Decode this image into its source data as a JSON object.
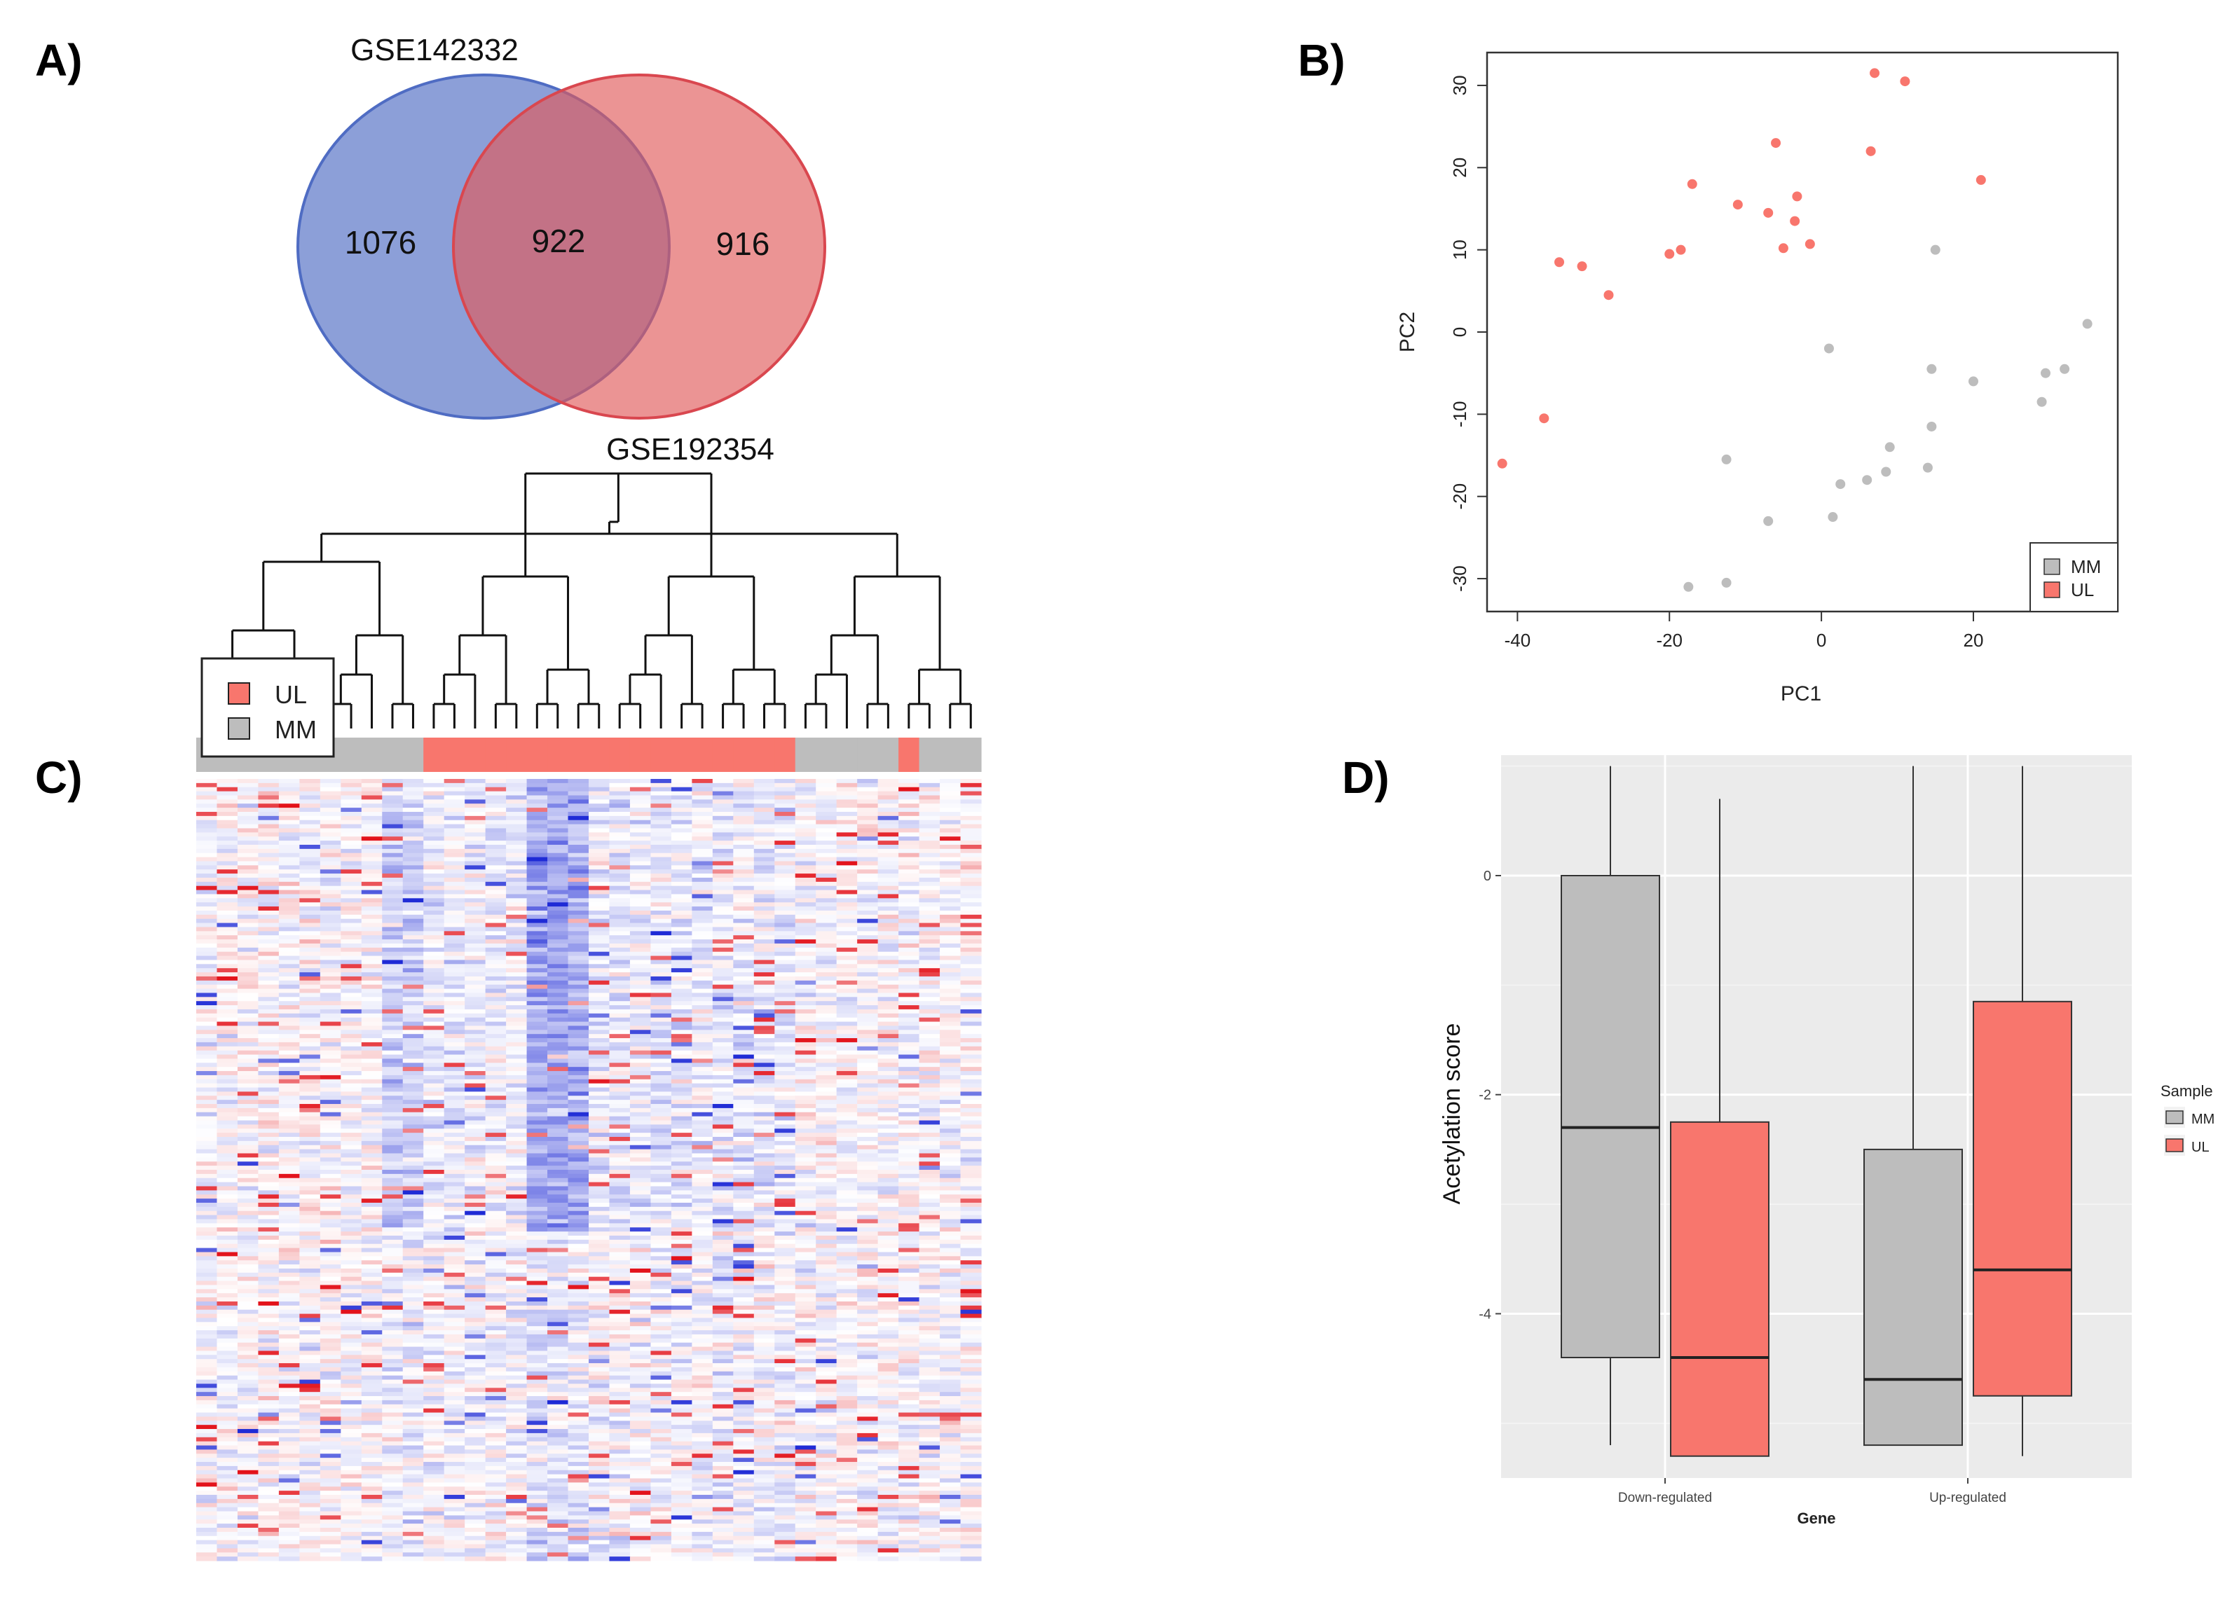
{
  "figure": {
    "panel_labels": [
      "A)",
      "B)",
      "C)",
      "D)"
    ]
  },
  "colors": {
    "set_blue": "#4f6cc3",
    "set_red": "#e15a5a",
    "ul": "#f8766d",
    "mm": "#bdbdbd",
    "heat_low": "#1f2bd6",
    "heat_mid": "#ffffff",
    "heat_high": "#e3131b",
    "panel_bg": "#ebebeb"
  },
  "chart_data": [
    {
      "panel": "A)",
      "type": "venn",
      "sets": [
        {
          "name": "GSE142332",
          "only": "1076"
        },
        {
          "name": "GSE192354",
          "only": "916"
        }
      ],
      "intersection": "922"
    },
    {
      "panel": "B)",
      "type": "scatter",
      "xlabel": "PC1",
      "ylabel": "PC2",
      "xlim": [
        -44,
        39
      ],
      "ylim": [
        -34,
        34
      ],
      "xticks": [
        "-40",
        "-20",
        "0",
        "20"
      ],
      "xtick_values": [
        -40,
        -20,
        0,
        20
      ],
      "yticks": [
        "-30",
        "-20",
        "-10",
        "0",
        "10",
        "20",
        "30"
      ],
      "ytick_values": [
        -30,
        -20,
        -10,
        0,
        10,
        20,
        30
      ],
      "legend": [
        {
          "label": "MM",
          "color": "#bdbdbd"
        },
        {
          "label": "UL",
          "color": "#f8766d"
        }
      ],
      "series": [
        {
          "name": "UL",
          "color": "#f8766d",
          "points": [
            [
              -42,
              -16
            ],
            [
              -36.5,
              -10.5
            ],
            [
              -34.5,
              8.5
            ],
            [
              -31.5,
              8
            ],
            [
              -28,
              4.5
            ],
            [
              -20,
              9.5
            ],
            [
              -18.5,
              10
            ],
            [
              -17,
              18
            ],
            [
              -11,
              15.5
            ],
            [
              -7,
              14.5
            ],
            [
              -6,
              23
            ],
            [
              -5,
              10.2
            ],
            [
              -3.5,
              13.5
            ],
            [
              -3.2,
              16.5
            ],
            [
              -1.5,
              10.7
            ],
            [
              6.5,
              22
            ],
            [
              7,
              31.5
            ],
            [
              11,
              30.5
            ],
            [
              21,
              18.5
            ]
          ]
        },
        {
          "name": "MM",
          "color": "#bdbdbd",
          "points": [
            [
              -17.5,
              -31
            ],
            [
              -12.5,
              -30.5
            ],
            [
              -12.5,
              -15.5
            ],
            [
              -7,
              -23
            ],
            [
              1,
              -2
            ],
            [
              1.5,
              -22.5
            ],
            [
              2.5,
              -18.5
            ],
            [
              6,
              -18
            ],
            [
              8.5,
              -17
            ],
            [
              9,
              -14
            ],
            [
              14,
              -16.5
            ],
            [
              14.5,
              -4.5
            ],
            [
              14.5,
              -11.5
            ],
            [
              15,
              10
            ],
            [
              20,
              -6
            ],
            [
              29,
              -8.5
            ],
            [
              29.5,
              -5
            ],
            [
              32,
              -4.5
            ],
            [
              35,
              1
            ]
          ]
        }
      ]
    },
    {
      "panel": "C)",
      "type": "heatmap",
      "legend": [
        {
          "label": "UL",
          "color": "#f8766d"
        },
        {
          "label": "MM",
          "color": "#bdbdbd"
        }
      ],
      "n_columns": 38,
      "n_rows": 190,
      "column_groups": [
        "MM",
        "MM",
        "MM",
        "MM",
        "MM",
        "MM",
        "MM",
        "MM",
        "MM",
        "MM",
        "MM",
        "UL",
        "UL",
        "UL",
        "UL",
        "UL",
        "UL",
        "UL",
        "UL",
        "UL",
        "UL",
        "UL",
        "UL",
        "UL",
        "UL",
        "UL",
        "UL",
        "UL",
        "UL",
        "MM",
        "MM",
        "MM",
        "MM",
        "MM",
        "UL",
        "MM",
        "MM",
        "MM"
      ],
      "value_range": [
        -3,
        3
      ]
    },
    {
      "panel": "D)",
      "type": "boxplot",
      "xlabel": "Gene",
      "ylabel": "Acetylation score",
      "categories": [
        "Down-regulated",
        "Up-regulated"
      ],
      "ylim": [
        -5.5,
        1.1
      ],
      "yticks": [
        "0",
        "-2",
        "-4"
      ],
      "ytick_values": [
        0,
        -2,
        -4
      ],
      "legend_title": "Sample",
      "legend": [
        {
          "label": "MM",
          "color": "#bdbdbd"
        },
        {
          "label": "UL",
          "color": "#f8766d"
        }
      ],
      "series": [
        {
          "name": "MM",
          "color": "#bdbdbd",
          "boxes": [
            {
              "min": -5.2,
              "q1": -4.4,
              "median": -2.3,
              "q3": 0.0,
              "max": 1.0
            },
            {
              "min": -5.2,
              "q1": -5.2,
              "median": -4.6,
              "q3": -2.5,
              "max": 1.0
            }
          ]
        },
        {
          "name": "UL",
          "color": "#f8766d",
          "boxes": [
            {
              "min": -5.3,
              "q1": -5.3,
              "median": -4.4,
              "q3": -2.25,
              "max": 0.7
            },
            {
              "min": -5.3,
              "q1": -4.75,
              "median": -3.6,
              "q3": -1.15,
              "max": 1.0
            }
          ]
        }
      ]
    }
  ]
}
